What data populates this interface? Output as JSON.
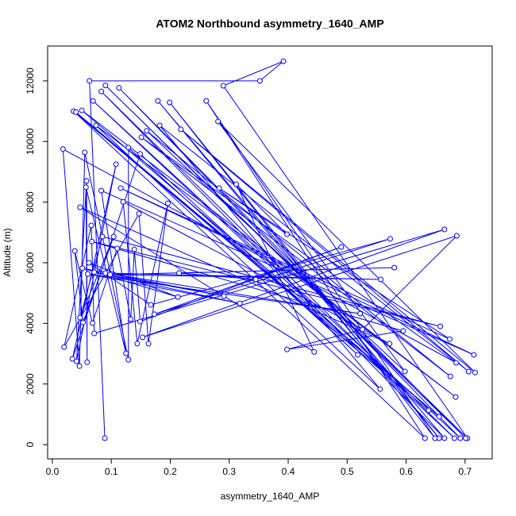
{
  "chart_data": {
    "type": "line",
    "title": "ATOM2 Northbound asymmetry_1640_AMP",
    "x_label": "asymmetry_1640_AMP",
    "y_label": "Altitude (m)",
    "color": "#0000ff",
    "markers": true,
    "xlim": [
      -0.008,
      0.746
    ],
    "ylim": [
      -470,
      13150
    ],
    "xticks": [
      {
        "value": 0,
        "label": "0.0"
      },
      0.1,
      0.2,
      0.3,
      0.4,
      0.5,
      0.6,
      0.7
    ],
    "yticks": [
      0,
      2000,
      4000,
      6000,
      8000,
      10000,
      12000
    ],
    "x": [
      0.089,
      0.063,
      0.352,
      0.392,
      0.29,
      0.704,
      0.09,
      0.701,
      0.113,
      0.692,
      0.069,
      0.682,
      0.083,
      0.665,
      0.179,
      0.656,
      0.199,
      0.649,
      0.261,
      0.632,
      0.036,
      0.638,
      0.04,
      0.656,
      0.05,
      0.684,
      0.074,
      0.556,
      0.182,
      0.706,
      0.218,
      0.717,
      0.281,
      0.598,
      0.16,
      0.675,
      0.151,
      0.685,
      0.018,
      0.046,
      0.055,
      0.129,
      0.129,
      0.518,
      0.149,
      0.034,
      0.108,
      0.041,
      0.058,
      0.059,
      0.057,
      0.125,
      0.083,
      0.715,
      0.116,
      0.674,
      0.283,
      0.398,
      0.312,
      0.444,
      0.047,
      0.572,
      0.12,
      0.144,
      0.196,
      0.163,
      0.147,
      0.02,
      0.066,
      0.071,
      0.665,
      0.153,
      0.686,
      0.526,
      0.398,
      0.595,
      0.067,
      0.658,
      0.085,
      0.047,
      0.104,
      0.052,
      0.038,
      0.068,
      0.11,
      0.133,
      0.139,
      0.149,
      0.49,
      0.173,
      0.573,
      0.167,
      0.062,
      0.213,
      0.051,
      0.291,
      0.071,
      0.318,
      0.06,
      0.522,
      0.09,
      0.557,
      0.098,
      0.58,
      0.215,
      0.345
    ],
    "y": [
      210,
      12000,
      12000,
      12650,
      11840,
      210,
      11850,
      210,
      11770,
      210,
      11340,
      210,
      11650,
      210,
      11340,
      210,
      11290,
      210,
      11340,
      210,
      11000,
      1130,
      10970,
      920,
      11030,
      1570,
      10530,
      1830,
      10530,
      2410,
      10400,
      2380,
      10660,
      2410,
      10350,
      2250,
      10140,
      2700,
      9750,
      2590,
      9640,
      2800,
      9800,
      2960,
      9590,
      2830,
      9250,
      2750,
      8700,
      2720,
      8490,
      3010,
      8380,
      2960,
      8460,
      3480,
      8460,
      6940,
      8590,
      3060,
      7830,
      3330,
      8010,
      3330,
      7960,
      3330,
      7620,
      3220,
      7230,
      3670,
      7100,
      3540,
      6890,
      3800,
      3140,
      3750,
      6700,
      3900,
      6860,
      4190,
      6860,
      4030,
      6390,
      4010,
      6470,
      4140,
      6440,
      4060,
      6520,
      4300,
      6790,
      4610,
      6000,
      4870,
      5820,
      4900,
      5690,
      4660,
      5630,
      4320,
      5660,
      5450,
      5610,
      5840,
      5660,
      5450
    ]
  }
}
